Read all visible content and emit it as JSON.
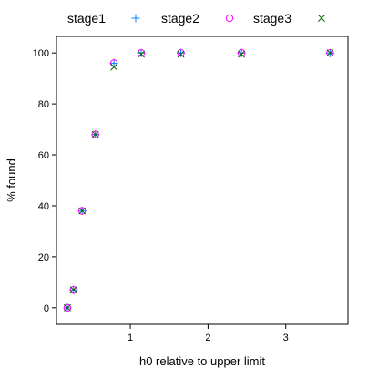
{
  "chart_data": {
    "type": "scatter",
    "title": "",
    "xlabel": "h0 relative to upper limit",
    "ylabel": "% found",
    "xlim": [
      0.05,
      3.8
    ],
    "ylim": [
      -6.5,
      106.5
    ],
    "x_ticks": [
      1,
      2,
      3
    ],
    "y_ticks": [
      0,
      20,
      40,
      60,
      80,
      100
    ],
    "grid": false,
    "legend_position": "top",
    "series": [
      {
        "name": "stage1",
        "marker": "plus",
        "color": "#0080ff",
        "points": [
          [
            0.19,
            0
          ],
          [
            0.27,
            7
          ],
          [
            0.38,
            38
          ],
          [
            0.55,
            68
          ],
          [
            0.79,
            96
          ],
          [
            1.14,
            100
          ],
          [
            1.65,
            100
          ],
          [
            2.43,
            100
          ],
          [
            3.57,
            100
          ]
        ]
      },
      {
        "name": "stage2",
        "marker": "circle",
        "color": "#ff00ff",
        "points": [
          [
            0.19,
            0
          ],
          [
            0.27,
            7
          ],
          [
            0.38,
            38
          ],
          [
            0.55,
            68
          ],
          [
            0.79,
            96
          ],
          [
            1.14,
            100
          ],
          [
            1.65,
            100
          ],
          [
            2.43,
            100
          ],
          [
            3.57,
            100
          ]
        ]
      },
      {
        "name": "stage3",
        "marker": "x",
        "color": "#006400",
        "points": [
          [
            0.19,
            0
          ],
          [
            0.27,
            7
          ],
          [
            0.38,
            38
          ],
          [
            0.55,
            68
          ],
          [
            0.79,
            94.5
          ],
          [
            1.14,
            99.5
          ],
          [
            1.65,
            99.5
          ],
          [
            2.43,
            99.5
          ],
          [
            3.57,
            100
          ]
        ]
      }
    ]
  }
}
